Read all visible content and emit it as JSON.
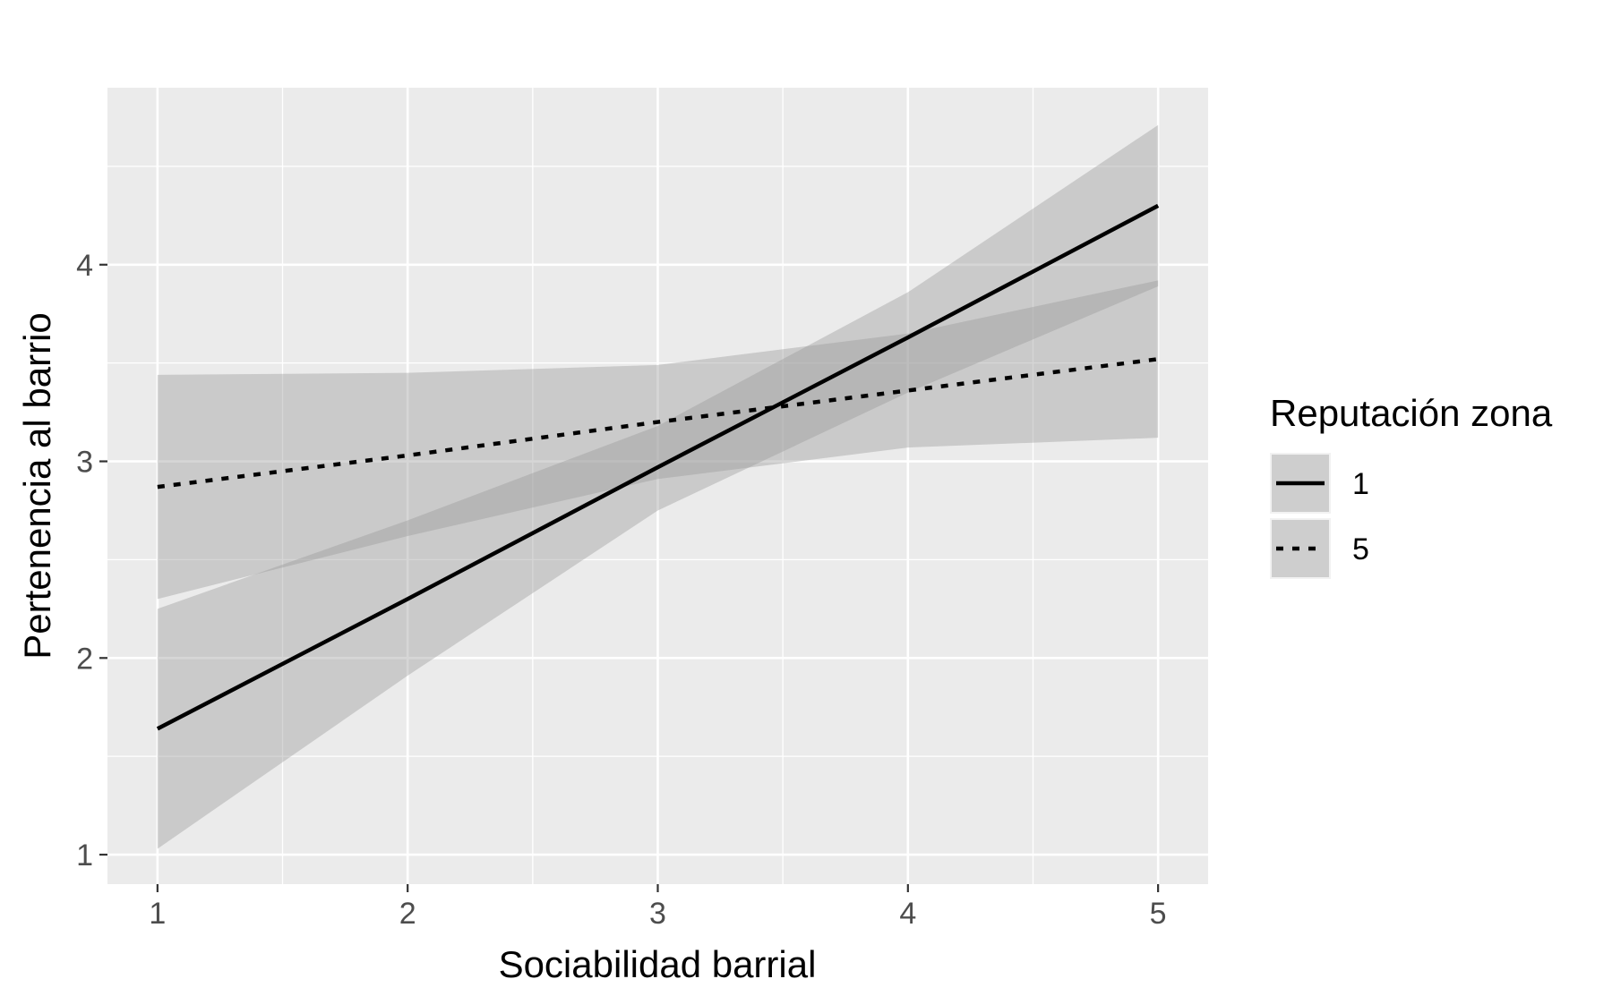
{
  "chart_data": {
    "type": "line",
    "title": "",
    "xlabel": "Sociabilidad barrial",
    "ylabel": "Pertenencia al barrio",
    "xlim": [
      0.8,
      5.2
    ],
    "ylim": [
      0.85,
      4.9
    ],
    "x_ticks": [
      1,
      2,
      3,
      4,
      5
    ],
    "y_ticks": [
      1,
      2,
      3,
      4
    ],
    "x_tick_labels": [
      "1",
      "2",
      "3",
      "4",
      "5"
    ],
    "y_tick_labels": [
      "1",
      "2",
      "3",
      "4"
    ],
    "x_minor": [
      1.5,
      2.5,
      3.5,
      4.5
    ],
    "y_minor": [
      1.5,
      2.5,
      3.5,
      4.5
    ],
    "grid": true,
    "background": "#ebebeb",
    "legend": {
      "title": "Reputación zona",
      "position": "right",
      "entries": [
        "1",
        "5"
      ]
    },
    "series": [
      {
        "name": "1",
        "line_style": "solid",
        "color": "#000000",
        "x": [
          1,
          2,
          3,
          4,
          5
        ],
        "y": [
          1.64,
          2.3,
          2.97,
          3.63,
          4.3
        ],
        "ci_lower": [
          1.03,
          1.91,
          2.75,
          3.35,
          3.89
        ],
        "ci_upper": [
          2.25,
          2.7,
          3.18,
          3.86,
          4.71
        ],
        "ribbon_color": "#999999",
        "ribbon_opacity": 0.4
      },
      {
        "name": "5",
        "line_style": "dotted",
        "color": "#000000",
        "x": [
          1,
          2,
          3,
          4,
          5
        ],
        "y": [
          2.87,
          3.03,
          3.2,
          3.36,
          3.52
        ],
        "ci_lower": [
          2.3,
          2.62,
          2.91,
          3.07,
          3.12
        ],
        "ci_upper": [
          3.44,
          3.45,
          3.49,
          3.65,
          3.92
        ],
        "ribbon_color": "#999999",
        "ribbon_opacity": 0.4
      }
    ]
  }
}
